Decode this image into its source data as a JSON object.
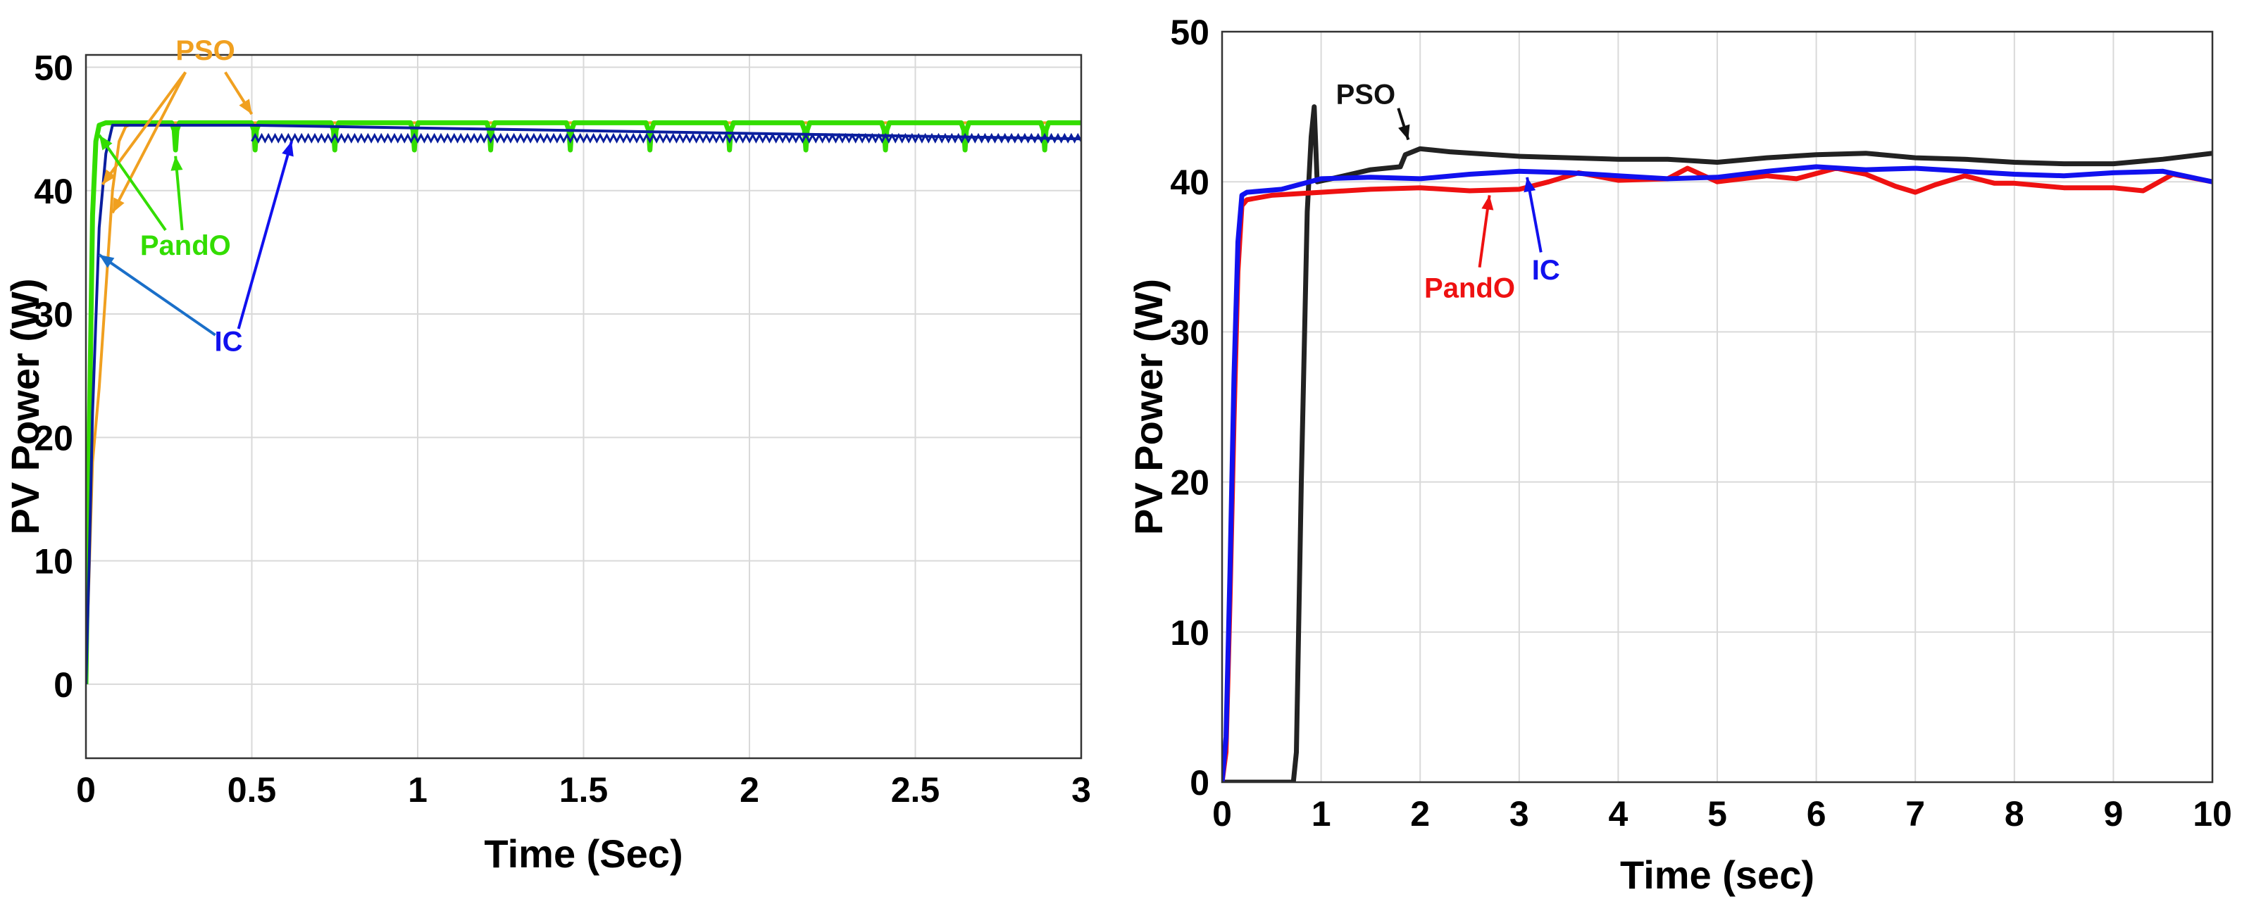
{
  "chart_data": [
    {
      "type": "line",
      "xlabel": "Time (Sec)",
      "ylabel": "PV Power (W)",
      "xlim": [
        0,
        3
      ],
      "ylim": [
        -6,
        51
      ],
      "xticks": [
        0,
        0.5,
        1,
        1.5,
        2,
        2.5,
        3
      ],
      "xtick_labels": [
        "0",
        "0.5",
        "1",
        "1.5",
        "2",
        "2.5",
        "3"
      ],
      "yticks": [
        0,
        10,
        20,
        30,
        40,
        50
      ],
      "ytick_labels": [
        "0",
        "10",
        "20",
        "30",
        "40",
        "50"
      ],
      "grid": true,
      "colors": {
        "PSO": "#f0a020",
        "PandO": "#33dd00",
        "IC": "#0a1e9e"
      },
      "series": [
        {
          "name": "PSO",
          "x": [
            0,
            0.005,
            0.02,
            0.04,
            0.06,
            0.08,
            0.1,
            0.12,
            0.15,
            3
          ],
          "y": [
            0,
            5,
            18,
            24,
            32,
            40,
            44,
            45.2,
            45.5,
            45.5
          ]
        },
        {
          "name": "PandO",
          "x": [
            0,
            0.01,
            0.02,
            0.03,
            0.04,
            0.06,
            3
          ],
          "y": [
            0,
            20,
            38,
            44,
            45.3,
            45.5,
            45.5
          ],
          "dips": [
            0.27,
            0.51,
            0.75,
            0.99,
            1.22,
            1.46,
            1.7,
            1.94,
            2.17,
            2.41,
            2.65,
            2.89
          ],
          "dip_level": 43.3
        },
        {
          "name": "IC",
          "x": [
            0,
            0.01,
            0.02,
            0.04,
            0.06,
            0.08,
            0.5,
            3
          ],
          "y": [
            0,
            10,
            22,
            37,
            43,
            45.3,
            45.3,
            44.2
          ]
        }
      ],
      "annotations": [
        {
          "text": "PSO",
          "color": "#f0a020"
        },
        {
          "text": "PandO",
          "color": "#33dd00"
        },
        {
          "text": "IC",
          "color": "#1010ee"
        }
      ]
    },
    {
      "type": "line",
      "xlabel": "Time (sec)",
      "ylabel": "PV Power (W)",
      "xlim": [
        0,
        10
      ],
      "ylim": [
        0,
        50
      ],
      "xticks": [
        0,
        1,
        2,
        3,
        4,
        5,
        6,
        7,
        8,
        9,
        10
      ],
      "xtick_labels": [
        "0",
        "1",
        "2",
        "3",
        "4",
        "5",
        "6",
        "7",
        "8",
        "9",
        "10"
      ],
      "yticks": [
        0,
        10,
        20,
        30,
        40,
        50
      ],
      "ytick_labels": [
        "0",
        "10",
        "20",
        "30",
        "40",
        "50"
      ],
      "grid": true,
      "colors": {
        "PSO": "#222222",
        "PandO": "#ee1111",
        "IC": "#1111ee"
      },
      "series": [
        {
          "name": "PSO",
          "x": [
            0,
            0.72,
            0.75,
            0.8,
            0.86,
            0.9,
            0.93,
            0.96,
            1.1,
            1.5,
            1.8,
            1.85,
            2.0,
            2.3,
            3.0,
            3.5,
            4.0,
            4.5,
            5.0,
            5.5,
            6.0,
            6.5,
            7.0,
            7.5,
            8.0,
            8.5,
            9.0,
            9.5,
            10
          ],
          "y": [
            0,
            0,
            2,
            20,
            38,
            43,
            45,
            40,
            40.2,
            40.8,
            41,
            41.8,
            42.2,
            42.0,
            41.7,
            41.6,
            41.5,
            41.5,
            41.3,
            41.6,
            41.8,
            41.9,
            41.6,
            41.5,
            41.3,
            41.2,
            41.2,
            41.5,
            41.9
          ]
        },
        {
          "name": "PandO",
          "x": [
            0,
            0.04,
            0.08,
            0.12,
            0.16,
            0.2,
            0.25,
            0.5,
            1.0,
            1.5,
            2.0,
            2.5,
            3.0,
            3.3,
            3.6,
            4.0,
            4.5,
            4.7,
            5.0,
            5.5,
            5.8,
            6.2,
            6.5,
            6.8,
            7.0,
            7.2,
            7.5,
            7.8,
            8.0,
            8.5,
            9.0,
            9.3,
            9.6,
            10
          ],
          "y": [
            0,
            2,
            12,
            24,
            34,
            38.4,
            38.8,
            39.1,
            39.3,
            39.5,
            39.6,
            39.4,
            39.5,
            40.0,
            40.6,
            40.1,
            40.2,
            40.9,
            40.0,
            40.4,
            40.2,
            40.9,
            40.5,
            39.7,
            39.3,
            39.8,
            40.4,
            39.9,
            39.9,
            39.6,
            39.6,
            39.4,
            40.5,
            40.0
          ]
        },
        {
          "name": "IC",
          "x": [
            0,
            0.04,
            0.08,
            0.12,
            0.16,
            0.2,
            0.25,
            0.6,
            1.0,
            1.5,
            2.0,
            2.5,
            3.0,
            3.5,
            4.0,
            4.5,
            5.0,
            5.5,
            6.0,
            6.5,
            7.0,
            7.5,
            8.0,
            8.5,
            9.0,
            9.5,
            10
          ],
          "y": [
            0,
            3,
            14,
            27,
            36,
            39.1,
            39.3,
            39.5,
            40.2,
            40.3,
            40.2,
            40.5,
            40.7,
            40.6,
            40.4,
            40.2,
            40.3,
            40.7,
            41.0,
            40.8,
            40.9,
            40.7,
            40.5,
            40.4,
            40.6,
            40.7,
            40.0
          ]
        }
      ],
      "annotations": [
        {
          "text": "PSO",
          "color": "#111111"
        },
        {
          "text": "PandO",
          "color": "#ee1111"
        },
        {
          "text": "IC",
          "color": "#1111ee"
        }
      ]
    }
  ]
}
